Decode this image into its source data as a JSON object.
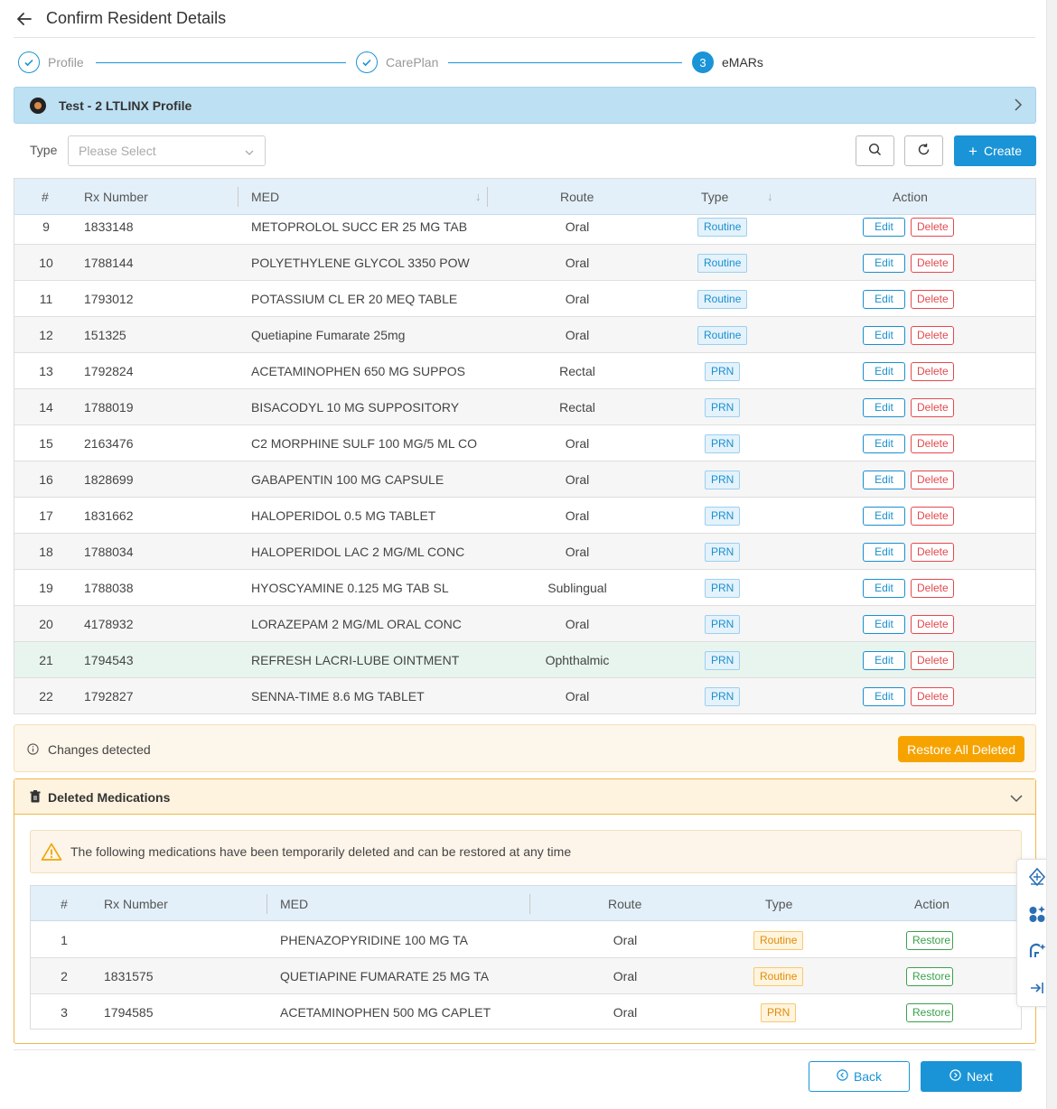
{
  "header": {
    "title": "Confirm Resident Details",
    "back_icon": "arrow-left-icon"
  },
  "steps": [
    {
      "label": "Profile",
      "state": "done"
    },
    {
      "label": "CarePlan",
      "state": "done"
    },
    {
      "number": "3",
      "label": "eMARs",
      "state": "active"
    }
  ],
  "profile": {
    "title": "Test - 2 LTLINX Profile"
  },
  "filter": {
    "type_label": "Type",
    "placeholder": "Please Select",
    "create_label": "Create"
  },
  "colors": {
    "primary": "#1a94d6",
    "header_bg": "#e3f0f9",
    "warn": "#f6a300",
    "routine": "#1a8fcf",
    "danger": "#e5484d",
    "success": "#3aa14a"
  },
  "table": {
    "headers": [
      "#",
      "Rx Number",
      "MED",
      "Route",
      "Type",
      "Action"
    ],
    "edit_label": "Edit",
    "delete_label": "Delete",
    "rows": [
      {
        "num": "9",
        "rx": "1833148",
        "med": "METOPROLOL SUCC ER 25 MG TAB",
        "route": "Oral",
        "type": "Routine"
      },
      {
        "num": "10",
        "rx": "1788144",
        "med": "POLYETHYLENE GLYCOL 3350 POW",
        "route": "Oral",
        "type": "Routine"
      },
      {
        "num": "11",
        "rx": "1793012",
        "med": "POTASSIUM CL ER 20 MEQ TABLE",
        "route": "Oral",
        "type": "Routine"
      },
      {
        "num": "12",
        "rx": "151325",
        "med": "Quetiapine Fumarate 25mg",
        "route": "Oral",
        "type": "Routine"
      },
      {
        "num": "13",
        "rx": "1792824",
        "med": "ACETAMINOPHEN 650 MG SUPPOS",
        "route": "Rectal",
        "type": "PRN"
      },
      {
        "num": "14",
        "rx": "1788019",
        "med": "BISACODYL 10 MG SUPPOSITORY",
        "route": "Rectal",
        "type": "PRN"
      },
      {
        "num": "15",
        "rx": "2163476",
        "med": "C2 MORPHINE SULF 100 MG/5 ML CO",
        "route": "Oral",
        "type": "PRN"
      },
      {
        "num": "16",
        "rx": "1828699",
        "med": "GABAPENTIN 100 MG CAPSULE",
        "route": "Oral",
        "type": "PRN"
      },
      {
        "num": "17",
        "rx": "1831662",
        "med": "HALOPERIDOL 0.5 MG TABLET",
        "route": "Oral",
        "type": "PRN"
      },
      {
        "num": "18",
        "rx": "1788034",
        "med": "HALOPERIDOL LAC 2 MG/ML CONC",
        "route": "Oral",
        "type": "PRN"
      },
      {
        "num": "19",
        "rx": "1788038",
        "med": "HYOSCYAMINE 0.125 MG TAB SL",
        "route": "Sublingual",
        "type": "PRN"
      },
      {
        "num": "20",
        "rx": "4178932",
        "med": "LORAZEPAM 2 MG/ML ORAL CONC",
        "route": "Oral",
        "type": "PRN"
      },
      {
        "num": "21",
        "rx": "1794543",
        "med": "REFRESH LACRI-LUBE OINTMENT",
        "route": "Ophthalmic",
        "type": "PRN"
      },
      {
        "num": "22",
        "rx": "1792827",
        "med": "SENNA-TIME 8.6 MG TABLET",
        "route": "Oral",
        "type": "PRN"
      }
    ]
  },
  "changes": {
    "text": "Changes detected",
    "restore_all_label": "Restore All Deleted"
  },
  "deleted": {
    "title": "Deleted Medications",
    "warning": "The following medications have been temporarily deleted and can be restored at any time",
    "headers": [
      "#",
      "Rx Number",
      "MED",
      "Route",
      "Type",
      "Action"
    ],
    "restore_label": "Restore",
    "rows": [
      {
        "num": "1",
        "rx": "",
        "med": "PHENAZOPYRIDINE 100 MG TA",
        "route": "Oral",
        "type": "Routine"
      },
      {
        "num": "2",
        "rx": "1831575",
        "med": "QUETIAPINE FUMARATE 25 MG TA",
        "route": "Oral",
        "type": "Routine"
      },
      {
        "num": "3",
        "rx": "1794585",
        "med": "ACETAMINOPHEN 500 MG CAPLET",
        "route": "Oral",
        "type": "PRN"
      }
    ]
  },
  "footer": {
    "back_label": "Back",
    "next_label": "Next"
  }
}
